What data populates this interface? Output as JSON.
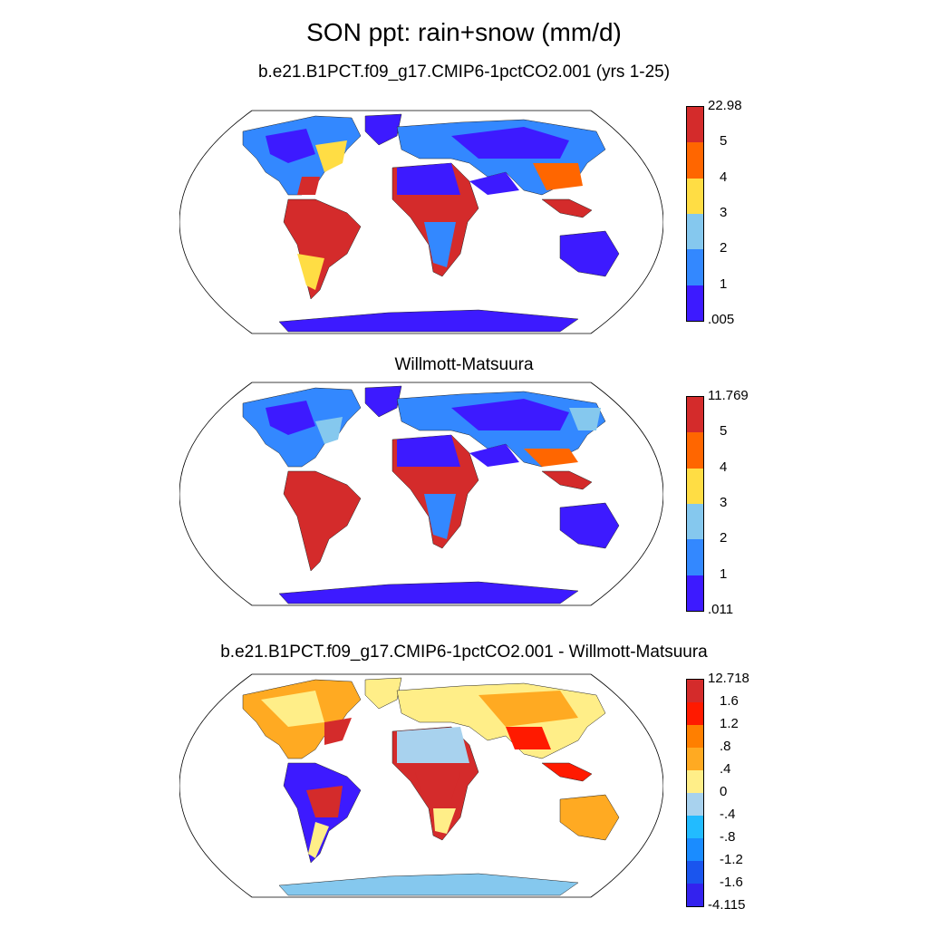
{
  "title": "SON ppt: rain+snow (mm/d)",
  "panels": [
    {
      "title": "b.e21.B1PCT.f09_g17.CMIP6-1pctCO2.001 (yrs 1-25)",
      "colorbar": {
        "labels": [
          "22.98",
          "5",
          "4",
          "3",
          "2",
          "1",
          ".005"
        ],
        "colors": [
          "#d42b2b",
          "#ff6600",
          "#ffdd44",
          "#85c8ee",
          "#3388ff",
          "#3d1aff"
        ]
      }
    },
    {
      "title": "Willmott-Matsuura",
      "colorbar": {
        "labels": [
          "11.769",
          "5",
          "4",
          "3",
          "2",
          "1",
          ".011"
        ],
        "colors": [
          "#d42b2b",
          "#ff6600",
          "#ffdd44",
          "#85c8ee",
          "#3388ff",
          "#3d1aff"
        ]
      }
    },
    {
      "title": "b.e21.B1PCT.f09_g17.CMIP6-1pctCO2.001 - Willmott-Matsuura",
      "colorbar": {
        "labels": [
          "12.718",
          "1.6",
          "1.2",
          ".8",
          ".4",
          "0",
          "-.4",
          "-.8",
          "-1.2",
          "-1.6",
          "-4.115"
        ],
        "colors": [
          "#d42b2b",
          "#ff1a00",
          "#ff7f00",
          "#ffaa22",
          "#ffee88",
          "#a8d2ee",
          "#22bbff",
          "#1a8cff",
          "#1a55ee",
          "#3322ee"
        ]
      }
    }
  ]
}
